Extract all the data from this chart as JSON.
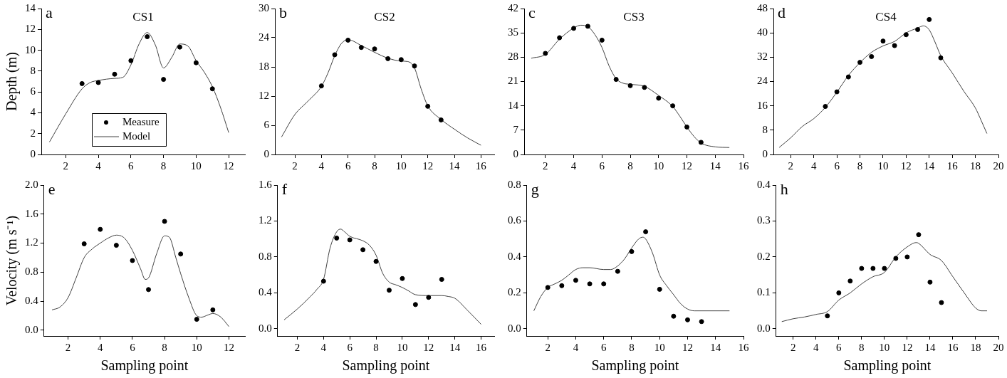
{
  "chart_data": [
    {
      "type": "scatter",
      "title": "CS1",
      "ylabel": "Depth (m)",
      "annotations": [
        "a"
      ],
      "xlim": [
        0.5,
        13
      ],
      "xticks": [
        2,
        4,
        6,
        8,
        10,
        12
      ],
      "ylim": [
        0,
        14
      ],
      "yticks": [
        0,
        2,
        4,
        6,
        8,
        10,
        12,
        14
      ],
      "grid": false,
      "legend": "bottom",
      "marker": "circle",
      "series": [
        {
          "name": "Measure",
          "type": "scatter",
          "color": "#000000",
          "x": [
            3,
            4,
            5,
            6,
            7,
            8,
            9,
            10,
            11
          ],
          "values": [
            6.8,
            6.9,
            7.7,
            9.0,
            11.3,
            7.2,
            10.3,
            8.8,
            6.3
          ]
        },
        {
          "name": "Model",
          "type": "line",
          "marker": "none",
          "line_style": "solid",
          "color": "#404040",
          "x": [
            1,
            2,
            3,
            3.5,
            4,
            5,
            5.5,
            6,
            6.5,
            7,
            7.5,
            8,
            8.5,
            9,
            9.5,
            10,
            10.5,
            11,
            11.5,
            12
          ],
          "values": [
            1.2,
            3.9,
            6.3,
            6.9,
            7.1,
            7.3,
            7.4,
            8.6,
            10.6,
            11.7,
            10.5,
            8.3,
            9.3,
            10.6,
            10.4,
            9.0,
            7.9,
            6.5,
            4.5,
            2.1
          ]
        }
      ]
    },
    {
      "type": "scatter",
      "title": "CS2",
      "annotations": [
        "b"
      ],
      "xlim": [
        0.5,
        17
      ],
      "xticks": [
        2,
        4,
        6,
        8,
        10,
        12,
        14,
        16
      ],
      "ylim": [
        0,
        30
      ],
      "yticks": [
        0,
        6,
        12,
        18,
        24,
        30
      ],
      "grid": false,
      "marker": "circle",
      "series": [
        {
          "type": "scatter",
          "color": "#000000",
          "x": [
            4,
            5,
            6,
            7,
            8,
            9,
            10,
            11,
            12,
            13
          ],
          "values": [
            14.1,
            20.5,
            23.5,
            22.0,
            21.7,
            19.7,
            19.5,
            18.2,
            9.9,
            7.1
          ]
        },
        {
          "type": "line",
          "marker": "none",
          "line_style": "solid",
          "color": "#404040",
          "x": [
            1,
            2,
            3,
            4,
            4.5,
            5,
            5.5,
            6,
            7,
            8,
            9,
            10,
            10.5,
            11,
            11.5,
            12,
            13,
            14,
            15,
            16
          ],
          "values": [
            3.6,
            8.2,
            11.0,
            14.0,
            16.8,
            20.3,
            22.8,
            23.6,
            22.4,
            21.0,
            19.8,
            19.2,
            19.1,
            17.8,
            13.5,
            10.0,
            7.2,
            5.2,
            3.4,
            1.9
          ]
        }
      ]
    },
    {
      "type": "scatter",
      "title": "CS3",
      "annotations": [
        "c"
      ],
      "xlim": [
        0.5,
        16
      ],
      "xticks": [
        2,
        4,
        6,
        8,
        10,
        12,
        14,
        16
      ],
      "ylim": [
        0,
        42
      ],
      "yticks": [
        0,
        7,
        14,
        21,
        28,
        35,
        42
      ],
      "grid": false,
      "marker": "circle",
      "series": [
        {
          "type": "scatter",
          "color": "#000000",
          "x": [
            2,
            3,
            4,
            5,
            6,
            7,
            8,
            9,
            10,
            11,
            12,
            13
          ],
          "values": [
            29.1,
            33.6,
            36.3,
            36.9,
            32.9,
            21.6,
            19.8,
            19.3,
            16.2,
            14.0,
            7.9,
            3.5
          ]
        },
        {
          "type": "line",
          "marker": "none",
          "line_style": "solid",
          "color": "#404040",
          "x": [
            1,
            2,
            3,
            4,
            4.5,
            5,
            5.5,
            6,
            6.5,
            7,
            7.5,
            8,
            9,
            10,
            11,
            11.5,
            12,
            12.5,
            13,
            14,
            15
          ],
          "values": [
            27.7,
            28.8,
            33.2,
            36.4,
            37.2,
            36.8,
            34.5,
            30.8,
            25.5,
            21.8,
            20.5,
            20.2,
            19.6,
            17.0,
            13.8,
            11.0,
            7.9,
            5.2,
            3.3,
            2.2,
            2.0
          ]
        }
      ]
    },
    {
      "type": "scatter",
      "title": "CS4",
      "annotations": [
        "d"
      ],
      "xlim": [
        0.5,
        20
      ],
      "xticks": [
        2,
        4,
        6,
        8,
        10,
        12,
        14,
        16,
        18,
        20
      ],
      "ylim": [
        0,
        48
      ],
      "yticks": [
        0,
        8,
        16,
        24,
        32,
        40,
        48
      ],
      "grid": false,
      "marker": "circle",
      "series": [
        {
          "type": "scatter",
          "color": "#000000",
          "x": [
            5,
            6,
            7,
            8,
            9,
            10,
            11,
            12,
            13,
            14,
            15
          ],
          "values": [
            15.8,
            20.6,
            25.5,
            30.3,
            32.2,
            37.3,
            35.8,
            39.4,
            41.1,
            44.4,
            31.8
          ]
        },
        {
          "type": "line",
          "marker": "none",
          "line_style": "solid",
          "color": "#404040",
          "x": [
            1,
            2,
            3,
            4,
            5,
            6,
            7,
            8,
            9,
            10,
            11,
            12,
            13,
            13.5,
            14,
            14.5,
            15,
            16,
            17,
            18,
            18.5,
            19
          ],
          "values": [
            2.3,
            5.5,
            9.2,
            11.8,
            15.5,
            20.5,
            26.0,
            30.2,
            33.6,
            35.7,
            37.2,
            40.0,
            41.6,
            42.3,
            41.0,
            37.0,
            32.5,
            26.8,
            20.8,
            15.3,
            11.2,
            6.9
          ]
        }
      ]
    },
    {
      "type": "scatter",
      "xlabel": "Sampling point",
      "ylabel": "Velocity (m s⁻¹)",
      "annotations": [
        "e"
      ],
      "xlim": [
        0.5,
        13
      ],
      "xticks": [
        2,
        4,
        6,
        8,
        10,
        12
      ],
      "ylim": [
        -0.08,
        2.0
      ],
      "yticks": [
        {
          "value": 0,
          "label": "0.0"
        },
        {
          "value": 0.4,
          "label": "0.4"
        },
        {
          "value": 0.8,
          "label": "0.8"
        },
        {
          "value": 1.2,
          "label": "1.2"
        },
        {
          "value": 1.6,
          "label": "1.6"
        },
        {
          "value": 2.0,
          "label": "2.0"
        }
      ],
      "grid": false,
      "marker": "circle",
      "series": [
        {
          "type": "scatter",
          "color": "#000000",
          "x": [
            3,
            4,
            5,
            6,
            7,
            8,
            9,
            10,
            11
          ],
          "values": [
            1.19,
            1.39,
            1.17,
            0.96,
            0.56,
            1.5,
            1.05,
            0.15,
            0.28
          ]
        },
        {
          "type": "line",
          "marker": "none",
          "line_style": "solid",
          "color": "#404040",
          "x": [
            1,
            1.5,
            2,
            2.5,
            3,
            3.5,
            4,
            4.5,
            5,
            5.5,
            6,
            6.5,
            6.8,
            7,
            7.5,
            8,
            8.3,
            8.7,
            9,
            9.5,
            10,
            10.3,
            10.7,
            11,
            11.5,
            12
          ],
          "values": [
            0.28,
            0.32,
            0.45,
            0.72,
            1.0,
            1.12,
            1.2,
            1.27,
            1.31,
            1.27,
            1.1,
            0.85,
            0.7,
            0.72,
            1.05,
            1.3,
            1.28,
            1.0,
            0.78,
            0.45,
            0.2,
            0.18,
            0.21,
            0.23,
            0.18,
            0.05
          ]
        }
      ]
    },
    {
      "type": "scatter",
      "xlabel": "Sampling point",
      "annotations": [
        "f"
      ],
      "xlim": [
        0.5,
        17
      ],
      "xticks": [
        2,
        4,
        6,
        8,
        10,
        12,
        14,
        16
      ],
      "ylim": [
        -0.08,
        1.6
      ],
      "yticks": [
        {
          "value": 0,
          "label": "0.0"
        },
        {
          "value": 0.4,
          "label": "0.4"
        },
        {
          "value": 0.8,
          "label": "0.8"
        },
        {
          "value": 1.2,
          "label": "1.2"
        },
        {
          "value": 1.6,
          "label": "1.6"
        }
      ],
      "grid": false,
      "marker": "circle",
      "series": [
        {
          "type": "scatter",
          "color": "#000000",
          "x": [
            4,
            5,
            6,
            7,
            8,
            9,
            10,
            11,
            12,
            13
          ],
          "values": [
            0.53,
            1.01,
            0.99,
            0.88,
            0.75,
            0.43,
            0.56,
            0.27,
            0.35,
            0.55
          ]
        },
        {
          "type": "line",
          "marker": "none",
          "line_style": "solid",
          "color": "#404040",
          "x": [
            1,
            2,
            3,
            3.5,
            4,
            4.5,
            5,
            5.3,
            5.6,
            6,
            7,
            7.5,
            8,
            8.5,
            9,
            9.5,
            10,
            10.5,
            11,
            12,
            13,
            13.5,
            14,
            15,
            16
          ],
          "values": [
            0.1,
            0.22,
            0.36,
            0.44,
            0.55,
            0.9,
            1.08,
            1.11,
            1.08,
            1.03,
            0.98,
            0.93,
            0.82,
            0.62,
            0.52,
            0.49,
            0.46,
            0.42,
            0.38,
            0.37,
            0.37,
            0.36,
            0.34,
            0.2,
            0.05
          ]
        }
      ]
    },
    {
      "type": "scatter",
      "xlabel": "Sampling point",
      "annotations": [
        "g"
      ],
      "xlim": [
        0.5,
        16
      ],
      "xticks": [
        2,
        4,
        6,
        8,
        10,
        12,
        14,
        16
      ],
      "ylim": [
        -0.04,
        0.8
      ],
      "yticks": [
        {
          "value": 0,
          "label": "0.0"
        },
        {
          "value": 0.2,
          "label": "0.2"
        },
        {
          "value": 0.4,
          "label": "0.4"
        },
        {
          "value": 0.6,
          "label": "0.6"
        },
        {
          "value": 0.8,
          "label": "0.8"
        }
      ],
      "grid": false,
      "marker": "circle",
      "series": [
        {
          "type": "scatter",
          "color": "#000000",
          "x": [
            2,
            3,
            4,
            5,
            6,
            7,
            8,
            9,
            10,
            11,
            12,
            13
          ],
          "values": [
            0.23,
            0.24,
            0.27,
            0.25,
            0.25,
            0.32,
            0.43,
            0.54,
            0.22,
            0.07,
            0.05,
            0.04
          ]
        },
        {
          "type": "line",
          "marker": "none",
          "line_style": "solid",
          "color": "#404040",
          "x": [
            1,
            1.5,
            2,
            2.5,
            3,
            3.5,
            4,
            4.5,
            5,
            6,
            6.5,
            7,
            7.5,
            8,
            8.5,
            8.8,
            9,
            9.5,
            10,
            10.5,
            11,
            11.5,
            12,
            12.5,
            15
          ],
          "values": [
            0.1,
            0.18,
            0.23,
            0.25,
            0.27,
            0.3,
            0.33,
            0.34,
            0.34,
            0.33,
            0.33,
            0.35,
            0.39,
            0.45,
            0.5,
            0.51,
            0.5,
            0.42,
            0.3,
            0.24,
            0.19,
            0.14,
            0.11,
            0.1,
            0.1
          ]
        }
      ]
    },
    {
      "type": "scatter",
      "xlabel": "Sampling point",
      "annotations": [
        "h"
      ],
      "xlim": [
        0.5,
        20
      ],
      "xticks": [
        2,
        4,
        6,
        8,
        10,
        12,
        14,
        16,
        18,
        20
      ],
      "ylim": [
        -0.02,
        0.4
      ],
      "yticks": [
        {
          "value": 0,
          "label": "0.0"
        },
        {
          "value": 0.1,
          "label": "0.1"
        },
        {
          "value": 0.2,
          "label": "0.2"
        },
        {
          "value": 0.3,
          "label": "0.3"
        },
        {
          "value": 0.4,
          "label": "0.4"
        }
      ],
      "grid": false,
      "marker": "circle",
      "series": [
        {
          "type": "scatter",
          "color": "#000000",
          "x": [
            5,
            6,
            7,
            8,
            9,
            10,
            11,
            12,
            13,
            14,
            15
          ],
          "values": [
            0.036,
            0.1,
            0.133,
            0.168,
            0.168,
            0.168,
            0.196,
            0.2,
            0.262,
            0.13,
            0.073
          ]
        },
        {
          "type": "line",
          "marker": "none",
          "line_style": "solid",
          "color": "#404040",
          "x": [
            1,
            2,
            3,
            4,
            5,
            6,
            7,
            8,
            9,
            10,
            11,
            12,
            12.8,
            13,
            14,
            15,
            16,
            17,
            18,
            18.5,
            19
          ],
          "values": [
            0.02,
            0.028,
            0.033,
            0.04,
            0.048,
            0.08,
            0.1,
            0.125,
            0.145,
            0.157,
            0.2,
            0.228,
            0.24,
            0.238,
            0.207,
            0.19,
            0.145,
            0.1,
            0.058,
            0.05,
            0.05
          ]
        }
      ]
    }
  ]
}
